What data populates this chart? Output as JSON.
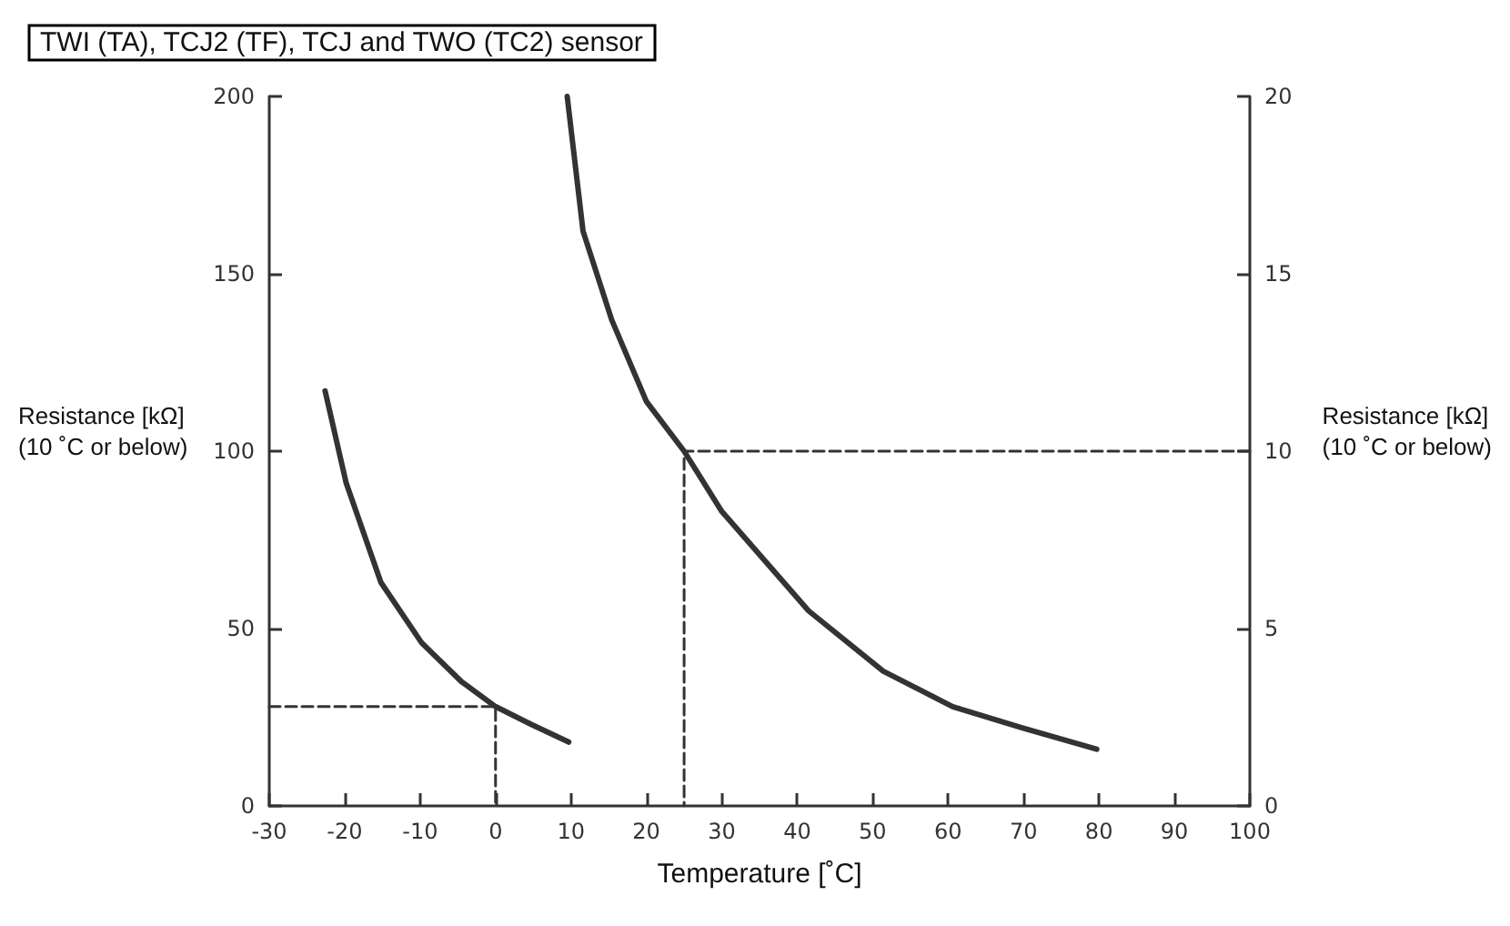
{
  "chart_data": {
    "type": "line",
    "title": "TWI (TA), TCJ2 (TF), TCJ and TWO (TC2) sensor",
    "xlabel": "Temperature [˚C]",
    "ylabel": "Resistance [kΩ]\n(10 ˚C or below)",
    "y2label": "Resistance [kΩ]\n(10 ˚C or below)",
    "xlim": [
      -30,
      100
    ],
    "xticks": [
      -30,
      -20,
      -10,
      0,
      10,
      20,
      30,
      40,
      50,
      60,
      70,
      80,
      90,
      100
    ],
    "ylim": [
      0,
      200
    ],
    "yticks": [
      0,
      50,
      100,
      150,
      200
    ],
    "y2lim": [
      0,
      20
    ],
    "y2ticks": [
      0,
      5,
      10,
      15,
      20
    ],
    "grid": false,
    "marker": "none",
    "series": [
      {
        "color": "#333333",
        "x": [
          -22.6,
          -19.8,
          -15.2,
          -9.8,
          -4.5,
          0,
          4.7,
          9.7
        ],
        "values": [
          117,
          91,
          63,
          46,
          35,
          28,
          23,
          18
        ]
      },
      {
        "color": "#333333",
        "axis": "y2",
        "x": [
          9.5,
          11.6,
          15.4,
          20,
          25,
          30,
          41.5,
          51.4,
          60.6,
          69.8,
          79.7
        ],
        "values": [
          20,
          16.2,
          13.7,
          11.4,
          10,
          8.3,
          5.5,
          3.8,
          2.8,
          2.2,
          1.6
        ]
      },
      {
        "color": "#333333",
        "line_style": "dashed",
        "x": [
          -30,
          0,
          0
        ],
        "values": [
          28,
          28,
          0
        ]
      },
      {
        "color": "#333333",
        "line_style": "dashed",
        "axis": "y2",
        "x": [
          100,
          25,
          25
        ],
        "values": [
          10,
          10,
          0
        ]
      }
    ]
  }
}
